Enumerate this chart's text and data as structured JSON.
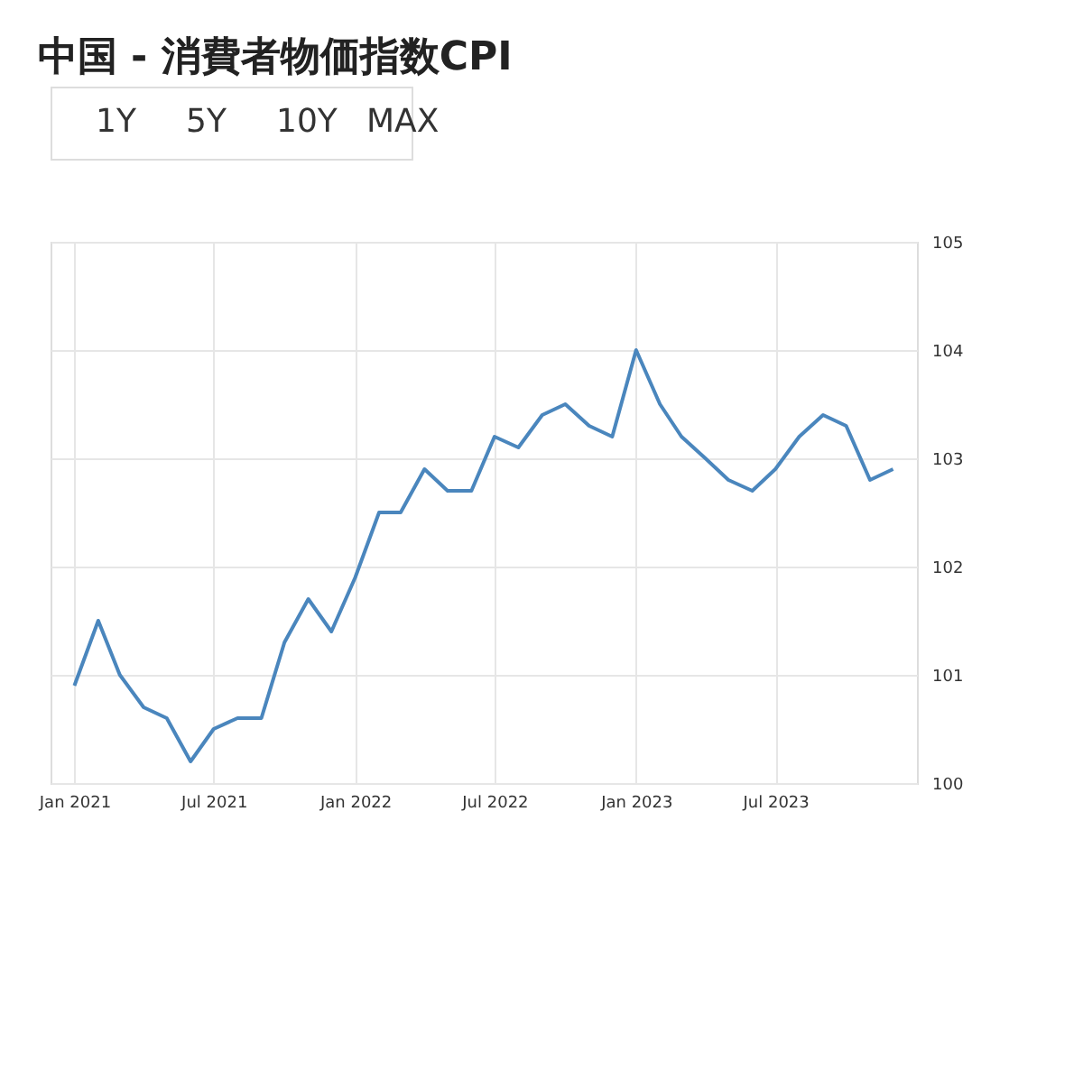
{
  "chart_data": {
    "type": "line",
    "title": "中国 - 消費者物価指数CPI",
    "annotations": [
      "1Y",
      "5Y",
      "10Y",
      "MAX"
    ],
    "x": [
      "2021-01",
      "2021-02",
      "2021-03",
      "2021-04",
      "2021-05",
      "2021-06",
      "2021-07",
      "2021-08",
      "2021-09",
      "2021-10",
      "2021-11",
      "2021-12",
      "2022-01",
      "2022-02",
      "2022-03",
      "2022-04",
      "2022-05",
      "2022-06",
      "2022-07",
      "2022-08",
      "2022-09",
      "2022-10",
      "2022-11",
      "2022-12",
      "2023-01",
      "2023-02",
      "2023-03",
      "2023-04",
      "2023-05",
      "2023-06",
      "2023-07",
      "2023-08",
      "2023-09",
      "2023-10",
      "2023-11",
      "2023-12"
    ],
    "series": [
      {
        "color": "#4a86bd",
        "values": [
          100.9,
          101.5,
          101.0,
          100.7,
          100.6,
          100.2,
          100.5,
          100.6,
          100.6,
          101.3,
          101.7,
          101.4,
          101.9,
          102.5,
          102.5,
          102.9,
          102.7,
          102.7,
          103.2,
          103.1,
          103.4,
          103.5,
          103.3,
          103.2,
          104.0,
          103.5,
          103.2,
          103.0,
          102.8,
          102.7,
          102.9,
          103.2,
          103.4,
          103.3,
          102.8,
          102.9
        ]
      }
    ],
    "xlim": [
      "2020-12-01",
      "2024-01-01"
    ],
    "xticks": [
      {
        "value": "2021-01",
        "label": "Jan 2021"
      },
      {
        "value": "2021-07",
        "label": "Jul 2021"
      },
      {
        "value": "2022-01",
        "label": "Jan 2022"
      },
      {
        "value": "2022-07",
        "label": "Jul 2022"
      },
      {
        "value": "2023-01",
        "label": "Jan 2023"
      },
      {
        "value": "2023-07",
        "label": "Jul 2023"
      }
    ],
    "ylim": [
      100,
      105
    ],
    "yticks": [
      100,
      101,
      102,
      103,
      104,
      105
    ],
    "grid": true,
    "legend": false,
    "marker": "none",
    "line_style": "solid"
  }
}
